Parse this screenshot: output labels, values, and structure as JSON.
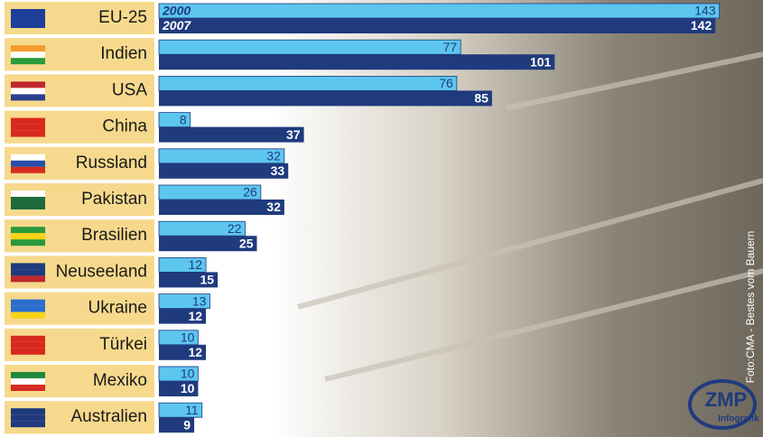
{
  "chart_data": {
    "type": "hbar",
    "categories": [
      "EU-25",
      "Indien",
      "USA",
      "China",
      "Russland",
      "Pakistan",
      "Brasilien",
      "Neuseeland",
      "Ukraine",
      "Türkei",
      "Mexiko",
      "Australien"
    ],
    "series": [
      {
        "name": "2000",
        "color": "#5cc6ef",
        "values": [
          143,
          77,
          76,
          8,
          32,
          26,
          22,
          12,
          13,
          10,
          10,
          11
        ]
      },
      {
        "name": "2007",
        "color": "#1f3b7d",
        "values": [
          142,
          101,
          85,
          37,
          33,
          32,
          25,
          15,
          12,
          12,
          10,
          9
        ]
      }
    ],
    "photo_credit": "Foto:CMA - Bestes vom Bauern",
    "logo": {
      "title": "ZMP",
      "subtitle": "Infografik"
    }
  }
}
